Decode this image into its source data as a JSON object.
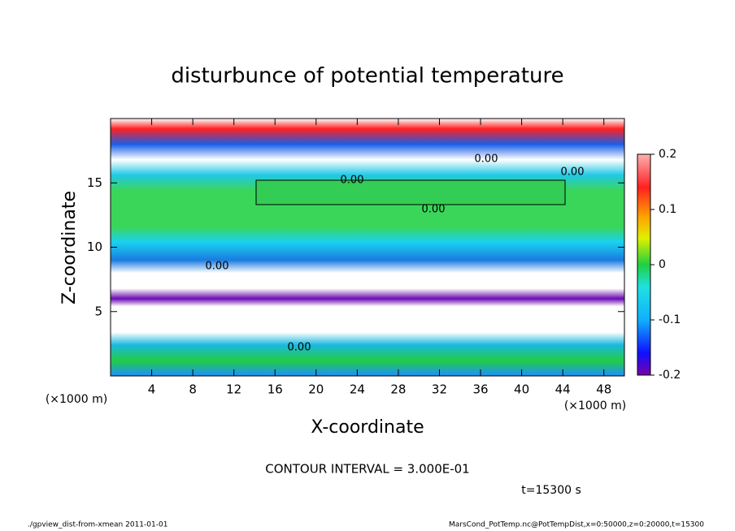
{
  "chart_data": {
    "type": "heatmap",
    "title": "disturbunce of potential temperature",
    "xlabel": "X-coordinate",
    "ylabel": "Z-coordinate",
    "x_unit": "(×1000 m)",
    "y_unit": "(×1000 m)",
    "xlim": [
      0,
      50
    ],
    "xticks": [
      4,
      8,
      12,
      16,
      20,
      24,
      28,
      32,
      36,
      40,
      44,
      48
    ],
    "ylim": [
      0,
      20
    ],
    "yticks": [
      5,
      10,
      15
    ],
    "colorbar": {
      "lim": [
        -0.2,
        0.2
      ],
      "ticks": [
        0.2,
        0.1,
        0,
        -0.1,
        -0.2
      ]
    },
    "contour_labels": [
      "0.00",
      "0.00",
      "0.00",
      "0.00",
      "0.00",
      "0.00"
    ],
    "contour_note": "CONTOUR INTERVAL = 3.000E-01",
    "time_note": "t=15300 s",
    "footer_left": "./gpview_dist-from-xmean  2011-01-01",
    "footer_right": "MarsCond_PotTemp.nc@PotTempDist,x=0:50000,z=0:20000,t=15300"
  }
}
